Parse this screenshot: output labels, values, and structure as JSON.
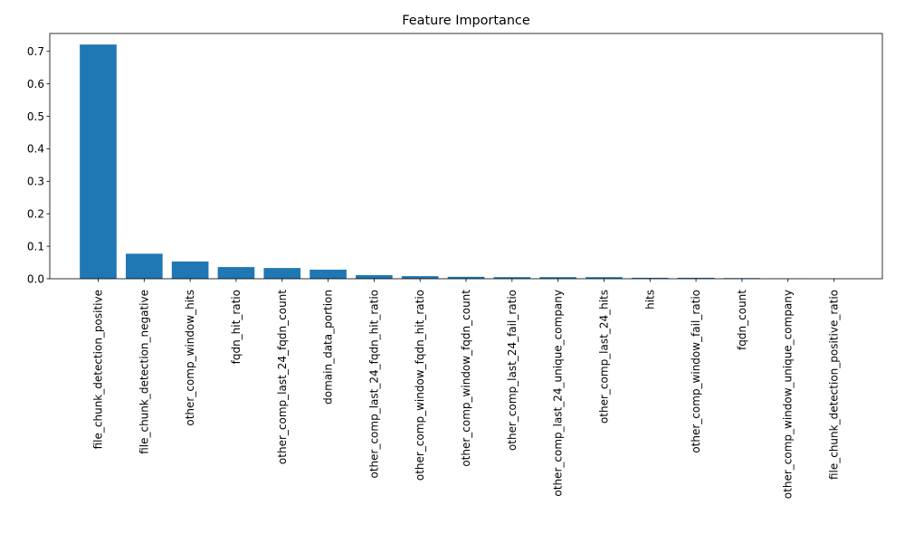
{
  "chart_data": {
    "type": "bar",
    "title": "Feature Importance",
    "xlabel": "",
    "ylabel": "",
    "ylim": [
      0,
      0.755
    ],
    "yticks": [
      0.0,
      0.1,
      0.2,
      0.3,
      0.4,
      0.5,
      0.6,
      0.7
    ],
    "ytick_labels": [
      "0.0",
      "0.1",
      "0.2",
      "0.3",
      "0.4",
      "0.5",
      "0.6",
      "0.7"
    ],
    "grid": false,
    "legend": "none",
    "bar_color": "#1f77b4",
    "categories": [
      "file_chunk_detection_positive",
      "file_chunk_detection_negative",
      "other_comp_window_hits",
      "fqdn_hit_ratio",
      "other_comp_last_24_fqdn_count",
      "domain_data_portion",
      "other_comp_last_24_fqdn_hit_ratio",
      "other_comp_window_fqdn_hit_ratio",
      "other_comp_window_fqdn_count",
      "other_comp_last_24_fail_ratio",
      "other_comp_last_24_unique_company",
      "other_comp_last_24_hits",
      "hits",
      "other_comp_window_fail_ratio",
      "fqdn_count",
      "other_comp_window_unique_company",
      "file_chunk_detection_positive_ratio"
    ],
    "values": [
      0.721,
      0.077,
      0.053,
      0.036,
      0.033,
      0.028,
      0.011,
      0.008,
      0.006,
      0.005,
      0.005,
      0.005,
      0.003,
      0.003,
      0.002,
      0.0005,
      0.0003
    ]
  }
}
